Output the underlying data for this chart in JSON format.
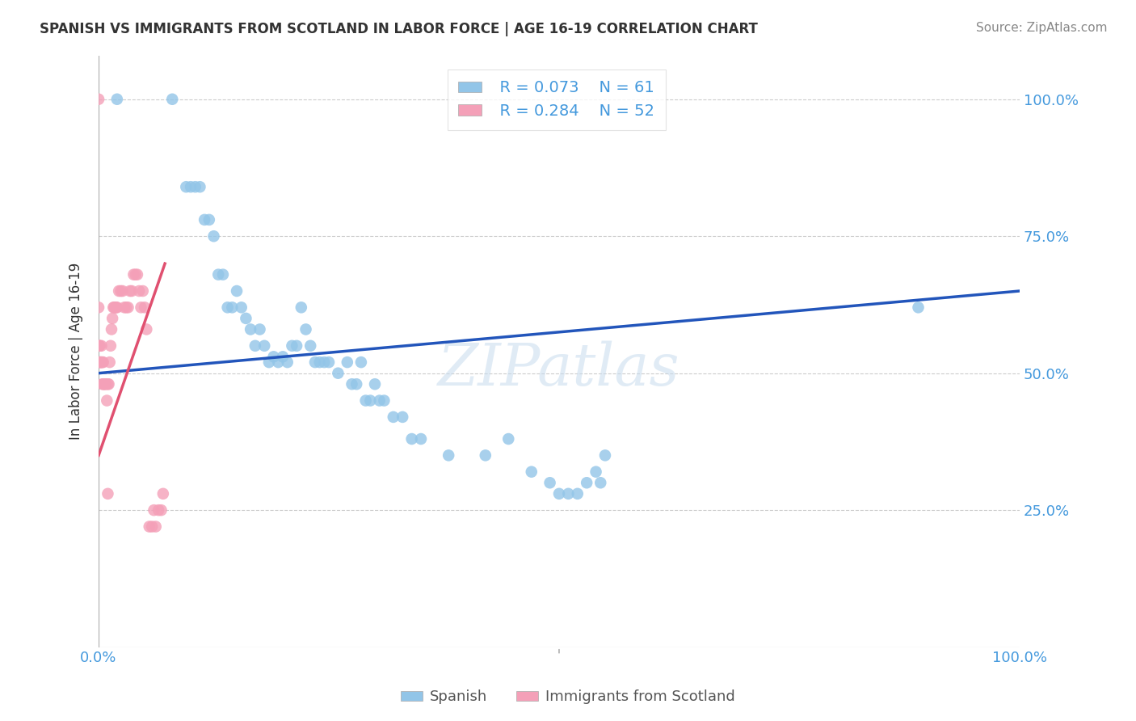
{
  "title": "SPANISH VS IMMIGRANTS FROM SCOTLAND IN LABOR FORCE | AGE 16-19 CORRELATION CHART",
  "source": "Source: ZipAtlas.com",
  "ylabel": "In Labor Force | Age 16-19",
  "legend_r1": "R = 0.073",
  "legend_n1": "N = 61",
  "legend_r2": "R = 0.284",
  "legend_n2": "N = 52",
  "color_blue": "#92C5E8",
  "color_pink": "#F4A0B8",
  "color_line_blue": "#2255BB",
  "color_line_pink": "#E05070",
  "watermark": "ZIPatlas",
  "background_color": "#ffffff",
  "blue_x": [
    0.02,
    0.08,
    0.095,
    0.1,
    0.105,
    0.11,
    0.115,
    0.12,
    0.125,
    0.13,
    0.135,
    0.14,
    0.145,
    0.15,
    0.155,
    0.16,
    0.165,
    0.17,
    0.175,
    0.18,
    0.185,
    0.19,
    0.195,
    0.2,
    0.205,
    0.21,
    0.215,
    0.22,
    0.225,
    0.23,
    0.235,
    0.24,
    0.245,
    0.25,
    0.26,
    0.27,
    0.275,
    0.28,
    0.285,
    0.29,
    0.295,
    0.3,
    0.305,
    0.31,
    0.32,
    0.33,
    0.34,
    0.35,
    0.38,
    0.42,
    0.445,
    0.47,
    0.49,
    0.5,
    0.51,
    0.52,
    0.53,
    0.54,
    0.545,
    0.55,
    0.89
  ],
  "blue_y": [
    1.0,
    1.0,
    0.84,
    0.84,
    0.84,
    0.84,
    0.78,
    0.78,
    0.75,
    0.68,
    0.68,
    0.62,
    0.62,
    0.65,
    0.62,
    0.6,
    0.58,
    0.55,
    0.58,
    0.55,
    0.52,
    0.53,
    0.52,
    0.53,
    0.52,
    0.55,
    0.55,
    0.62,
    0.58,
    0.55,
    0.52,
    0.52,
    0.52,
    0.52,
    0.5,
    0.52,
    0.48,
    0.48,
    0.52,
    0.45,
    0.45,
    0.48,
    0.45,
    0.45,
    0.42,
    0.42,
    0.38,
    0.38,
    0.35,
    0.35,
    0.38,
    0.32,
    0.3,
    0.28,
    0.28,
    0.28,
    0.3,
    0.32,
    0.3,
    0.35,
    0.62
  ],
  "pink_x": [
    0.0,
    0.0,
    0.001,
    0.001,
    0.001,
    0.002,
    0.002,
    0.003,
    0.003,
    0.004,
    0.004,
    0.005,
    0.005,
    0.006,
    0.007,
    0.008,
    0.009,
    0.01,
    0.01,
    0.011,
    0.012,
    0.013,
    0.014,
    0.015,
    0.016,
    0.017,
    0.018,
    0.019,
    0.02,
    0.022,
    0.024,
    0.026,
    0.028,
    0.03,
    0.032,
    0.034,
    0.036,
    0.038,
    0.04,
    0.042,
    0.044,
    0.046,
    0.048,
    0.05,
    0.052,
    0.055,
    0.058,
    0.06,
    0.062,
    0.065,
    0.068,
    0.07
  ],
  "pink_y": [
    0.62,
    1.0,
    0.55,
    0.55,
    0.52,
    0.52,
    0.52,
    0.55,
    0.52,
    0.52,
    0.48,
    0.52,
    0.48,
    0.48,
    0.48,
    0.48,
    0.45,
    0.48,
    0.28,
    0.48,
    0.52,
    0.55,
    0.58,
    0.6,
    0.62,
    0.62,
    0.62,
    0.62,
    0.62,
    0.65,
    0.65,
    0.65,
    0.62,
    0.62,
    0.62,
    0.65,
    0.65,
    0.68,
    0.68,
    0.68,
    0.65,
    0.62,
    0.65,
    0.62,
    0.58,
    0.22,
    0.22,
    0.25,
    0.22,
    0.25,
    0.25,
    0.28
  ]
}
